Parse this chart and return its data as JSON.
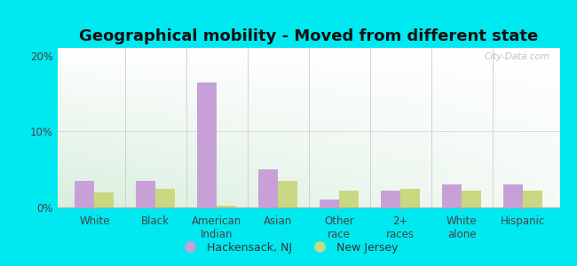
{
  "title": "Geographical mobility - Moved from different state",
  "categories": [
    "White",
    "Black",
    "American\nIndian",
    "Asian",
    "Other\nrace",
    "2+\nraces",
    "White\nalone",
    "Hispanic"
  ],
  "hackensack_values": [
    3.5,
    3.5,
    16.5,
    5.0,
    1.0,
    2.2,
    3.0,
    3.0
  ],
  "newjersey_values": [
    2.0,
    2.5,
    0.2,
    3.5,
    2.2,
    2.5,
    2.2,
    2.2
  ],
  "hackensack_color": "#c8a0d8",
  "newjersey_color": "#c8d880",
  "background_outer": "#00e8f0",
  "ylim": [
    0,
    21
  ],
  "yticks": [
    0,
    10,
    20
  ],
  "ytick_labels": [
    "0%",
    "10%",
    "20%"
  ],
  "bar_width": 0.32,
  "legend_hackensack": "Hackensack, NJ",
  "legend_newjersey": "New Jersey",
  "watermark": "City-Data.com",
  "title_fontsize": 13,
  "tick_fontsize": 8.5
}
